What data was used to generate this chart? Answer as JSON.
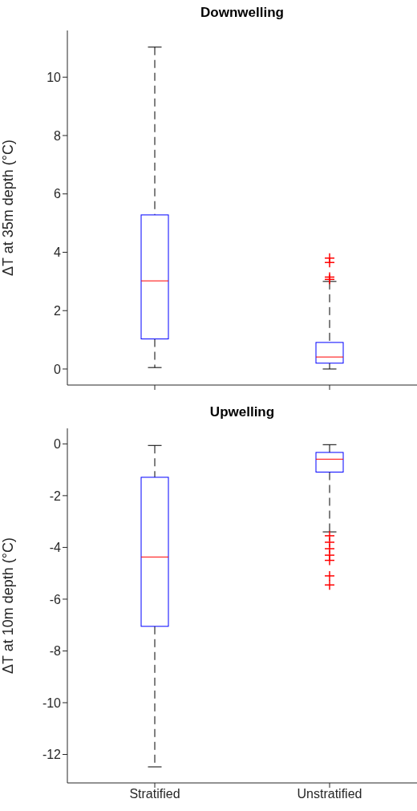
{
  "chart_data": [
    {
      "type": "box",
      "title": "Downwelling",
      "ylabel": "ΔT at 35m depth (°C)",
      "color": "#0000ff",
      "ylim": [
        -0.55,
        11.6
      ],
      "yticks": [
        0,
        2,
        4,
        6,
        8,
        10
      ],
      "tick_labels": "y",
      "boxes": [
        {
          "low": 0.05,
          "q1": 1.03,
          "median": 3.02,
          "q3": 5.28,
          "high": 11.03
        },
        {
          "low": 0,
          "q1": 0.2,
          "median": 0.41,
          "q3": 0.91,
          "high": 3.0,
          "outliers": [
            3.8,
            3.65,
            3.15,
            3.07
          ]
        }
      ]
    },
    {
      "type": "box",
      "title": "Upwelling",
      "ylabel": "ΔT at 10m depth (°C)",
      "categories": [
        "Stratified",
        "Unstratified"
      ],
      "color": "#0000ff",
      "ylim": [
        -13.1,
        0.6
      ],
      "yticks": [
        -12,
        -10,
        -8,
        -6,
        -4,
        -2,
        0
      ],
      "boxes": [
        {
          "low": -12.48,
          "q1": -7.05,
          "median": -4.37,
          "q3": -1.29,
          "high": -0.06
        },
        {
          "low": -3.4,
          "q1": -1.09,
          "median": -0.59,
          "q3": -0.33,
          "high": -0.03,
          "outliers": [
            -3.55,
            -3.8,
            -4.05,
            -4.3,
            -4.5,
            -5.1,
            -5.45
          ]
        }
      ]
    }
  ]
}
